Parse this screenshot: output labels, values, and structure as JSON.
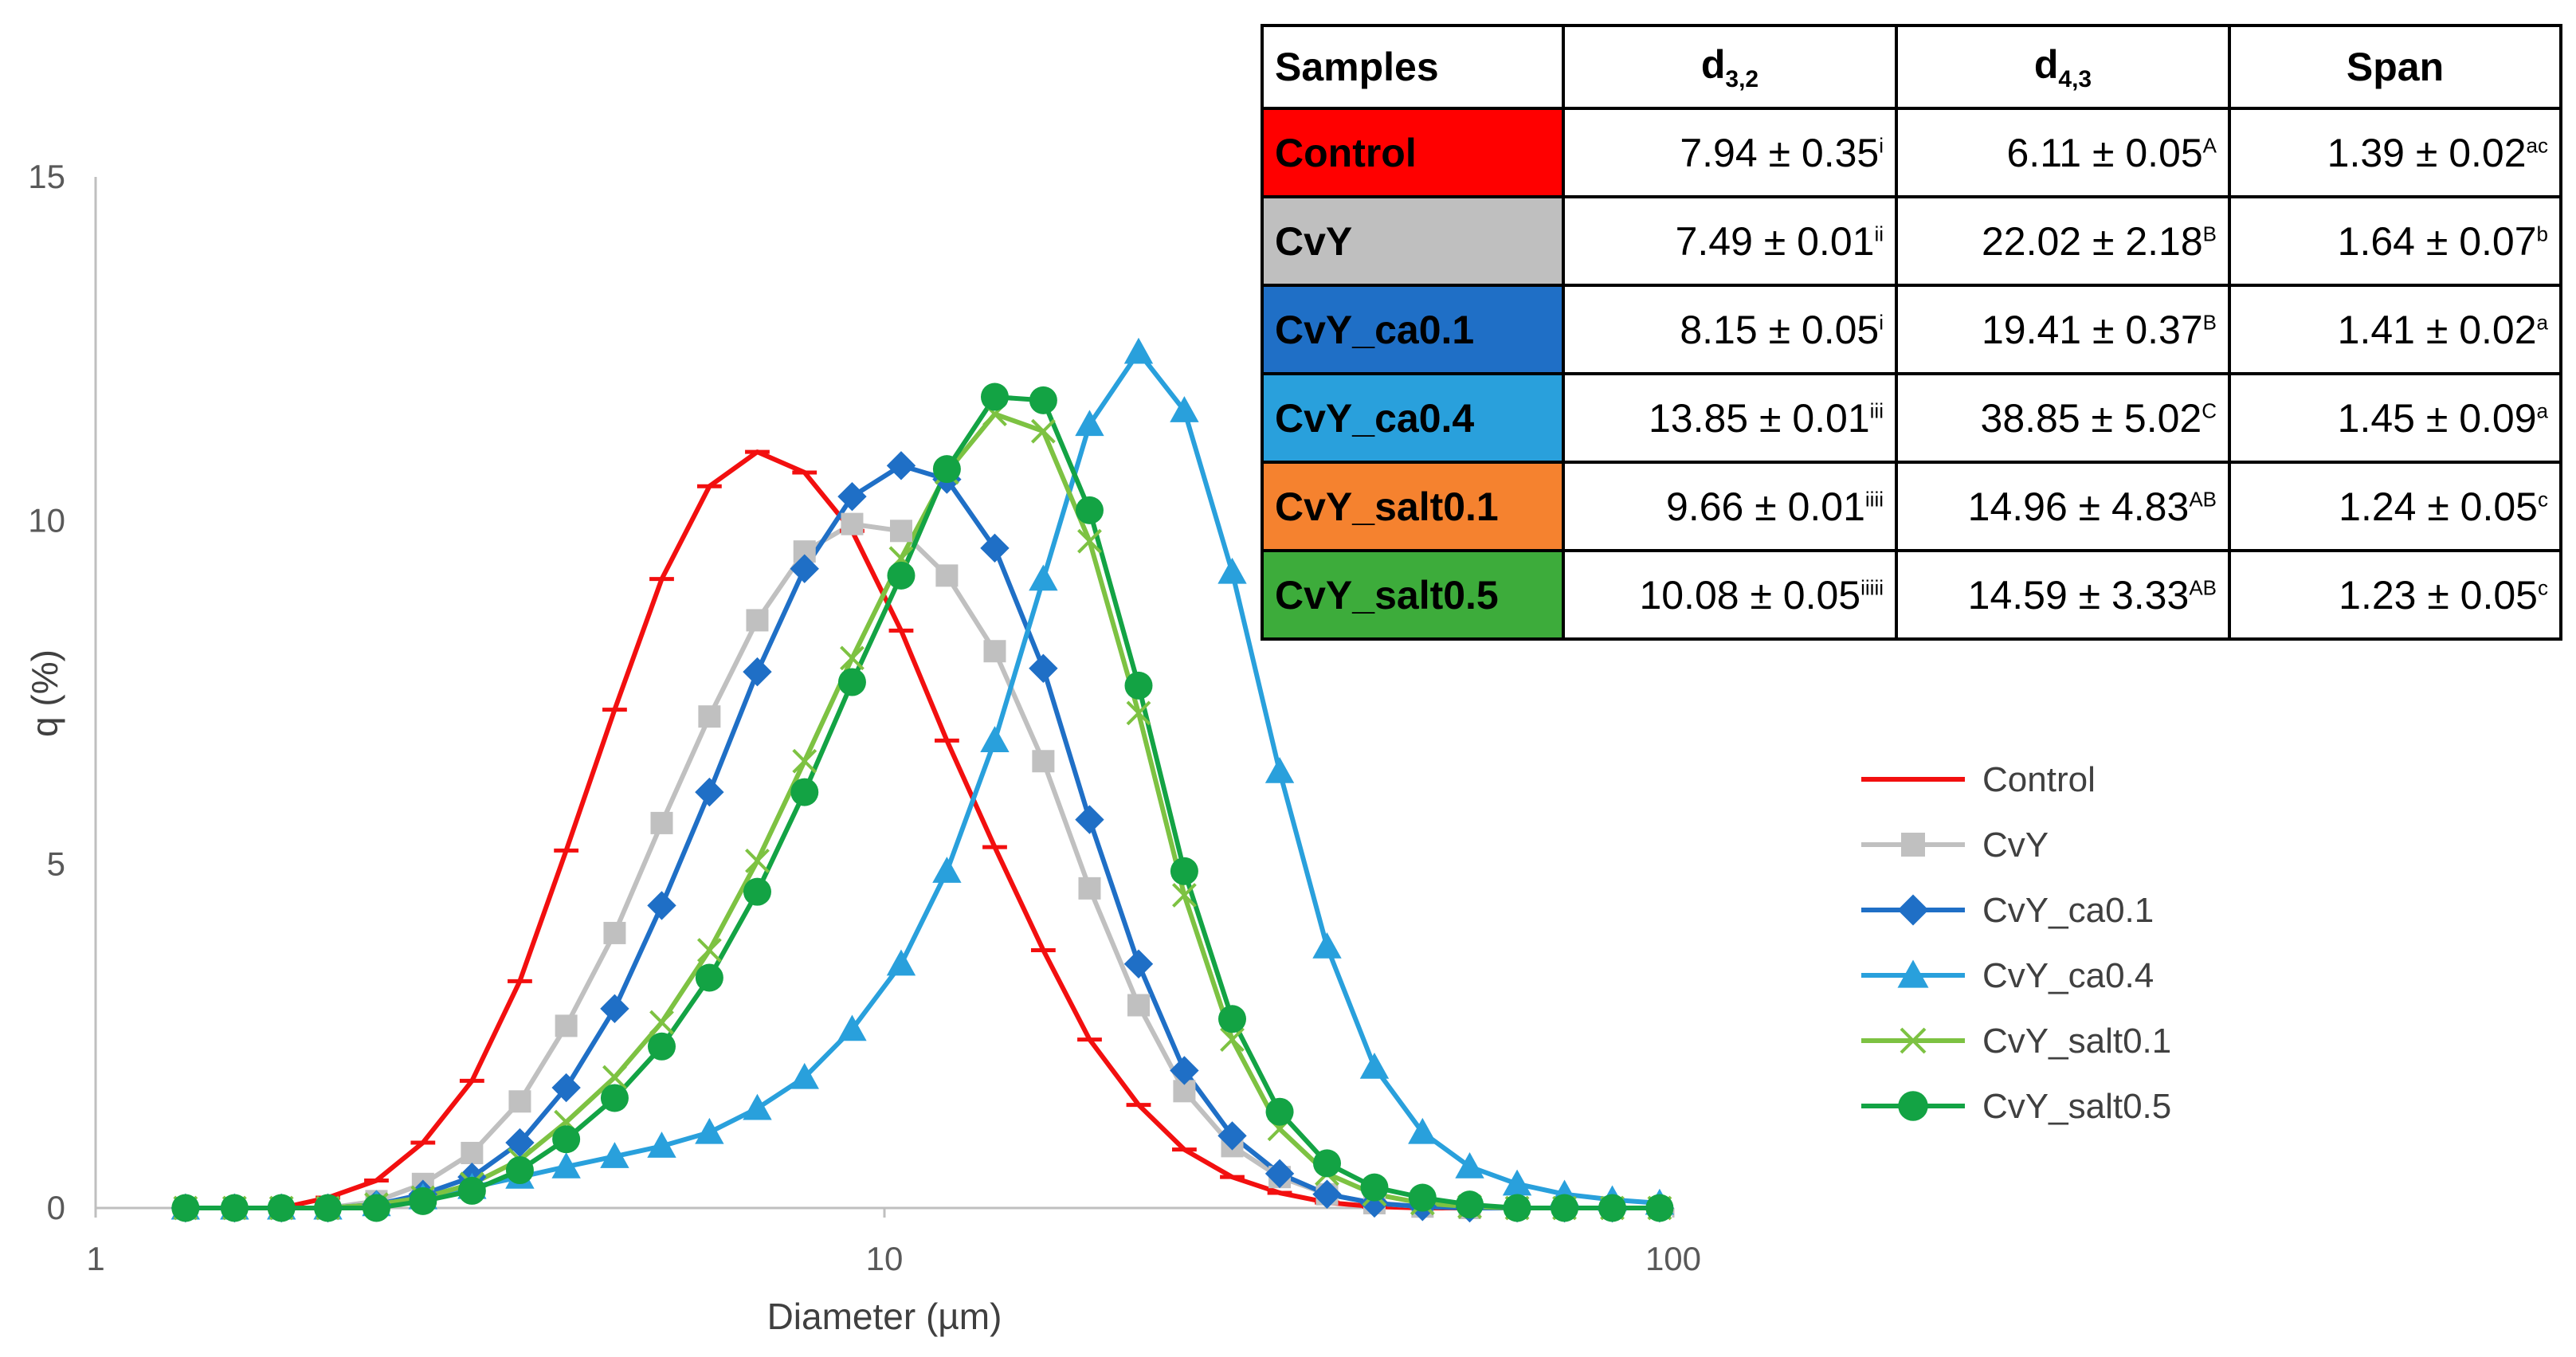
{
  "chart_data": {
    "type": "line",
    "xscale": "log",
    "xlabel": "Diameter (µm)",
    "ylabel": "q (%)",
    "xlim": [
      1,
      100
    ],
    "ylim": [
      0,
      15
    ],
    "xticks": [
      "1",
      "10",
      "100"
    ],
    "yticks": [
      "0",
      "5",
      "10",
      "15"
    ],
    "x": [
      1.3,
      1.5,
      1.72,
      1.97,
      2.27,
      2.6,
      3,
      3.45,
      3.95,
      4.55,
      5.22,
      6,
      6.9,
      7.92,
      9.1,
      10.5,
      12,
      13.8,
      15.9,
      18.2,
      21,
      24,
      27.6,
      31.7,
      36.4,
      41.8,
      48.1,
      55.2,
      63.4,
      72.8,
      83.7,
      96.1
    ],
    "series": [
      {
        "name": "Control",
        "color": "#f20f0f",
        "marker": "dash",
        "values": [
          0,
          0,
          0,
          0.15,
          0.4,
          0.95,
          1.85,
          3.3,
          5.2,
          7.25,
          9.15,
          10.5,
          11.0,
          10.7,
          9.85,
          8.4,
          6.8,
          5.25,
          3.75,
          2.45,
          1.5,
          0.85,
          0.45,
          0.22,
          0.08,
          0.02,
          0,
          0,
          0,
          0,
          0,
          0
        ]
      },
      {
        "name": "CvY",
        "color": "#c0c0c0",
        "marker": "square",
        "values": [
          0,
          0,
          0,
          0,
          0.1,
          0.35,
          0.8,
          1.55,
          2.65,
          4.0,
          5.6,
          7.15,
          8.55,
          9.55,
          9.95,
          9.85,
          9.2,
          8.1,
          6.5,
          4.65,
          2.95,
          1.7,
          0.9,
          0.45,
          0.2,
          0.07,
          0.02,
          0,
          0,
          0,
          0,
          0
        ]
      },
      {
        "name": "CvY_ca0.1",
        "color": "#1f6fc6",
        "marker": "diamond",
        "values": [
          0,
          0,
          0,
          0,
          0.05,
          0.2,
          0.45,
          0.95,
          1.75,
          2.9,
          4.4,
          6.05,
          7.8,
          9.3,
          10.35,
          10.8,
          10.6,
          9.6,
          7.85,
          5.65,
          3.55,
          2.0,
          1.05,
          0.5,
          0.2,
          0.07,
          0.02,
          0,
          0,
          0,
          0,
          0
        ]
      },
      {
        "name": "CvY_ca0.4",
        "color": "#29a0dc",
        "marker": "triangle",
        "values": [
          0,
          0,
          0,
          0,
          0.05,
          0.15,
          0.3,
          0.45,
          0.6,
          0.75,
          0.9,
          1.1,
          1.45,
          1.9,
          2.6,
          3.55,
          4.9,
          6.8,
          9.15,
          11.4,
          12.45,
          11.6,
          9.25,
          6.35,
          3.8,
          2.05,
          1.1,
          0.6,
          0.35,
          0.2,
          0.12,
          0.07
        ]
      },
      {
        "name": "CvY_salt0.1",
        "color": "#7dc242",
        "marker": "x",
        "values": [
          0,
          0,
          0,
          0,
          0.05,
          0.15,
          0.35,
          0.7,
          1.25,
          1.9,
          2.7,
          3.75,
          5.05,
          6.5,
          8.0,
          9.45,
          10.7,
          11.55,
          11.3,
          9.7,
          7.2,
          4.55,
          2.45,
          1.15,
          0.5,
          0.2,
          0.07,
          0.02,
          0,
          0,
          0,
          0
        ]
      },
      {
        "name": "CvY_salt0.5",
        "color": "#13a344",
        "marker": "circle",
        "values": [
          0,
          0,
          0,
          0,
          0,
          0.1,
          0.25,
          0.55,
          1.0,
          1.6,
          2.35,
          3.35,
          4.6,
          6.05,
          7.65,
          9.2,
          10.75,
          11.8,
          11.75,
          10.15,
          7.6,
          4.9,
          2.75,
          1.4,
          0.65,
          0.3,
          0.15,
          0.05,
          0,
          0,
          0,
          0
        ]
      }
    ]
  },
  "table": {
    "headers": {
      "samples": "Samples",
      "d32_main": "d",
      "d32_sub": "3,2",
      "d43_main": "d",
      "d43_sub": "4,3",
      "span": "Span"
    },
    "rows": [
      {
        "sample": "Control",
        "bg": "#ff0000",
        "d32": "7.94 ± 0.35",
        "d32_sup": "i",
        "d43": "6.11 ± 0.05",
        "d43_sup": "A",
        "span": "1.39 ± 0.02",
        "span_sup": "ac"
      },
      {
        "sample": "CvY",
        "bg": "#bfbfbf",
        "d32": "7.49 ± 0.01",
        "d32_sup": "ii",
        "d43": "22.02 ± 2.18",
        "d43_sup": "B",
        "span": "1.64 ± 0.07",
        "span_sup": "b"
      },
      {
        "sample": "CvY_ca0.1",
        "bg": "#1f6fc6",
        "d32": "8.15 ± 0.05",
        "d32_sup": "i",
        "d43": "19.41 ± 0.37",
        "d43_sup": "B",
        "span": "1.41 ± 0.02",
        "span_sup": "a"
      },
      {
        "sample": "CvY_ca0.4",
        "bg": "#29a0dc",
        "d32": "13.85 ± 0.01",
        "d32_sup": "iii",
        "d43": "38.85 ± 5.02",
        "d43_sup": "C",
        "span": "1.45 ± 0.09",
        "span_sup": "a"
      },
      {
        "sample": "CvY_salt0.1",
        "bg": "#f5822f",
        "d32": "9.66 ± 0.01",
        "d32_sup": "iiii",
        "d43": "14.96 ± 4.83",
        "d43_sup": "AB",
        "span": "1.24 ± 0.05",
        "span_sup": "c"
      },
      {
        "sample": "CvY_salt0.5",
        "bg": "#3dac3b",
        "d32": "10.08 ± 0.05",
        "d32_sup": "iiiii",
        "d43": "14.59 ± 3.33",
        "d43_sup": "AB",
        "span": "1.23 ± 0.05",
        "span_sup": "c"
      }
    ]
  }
}
